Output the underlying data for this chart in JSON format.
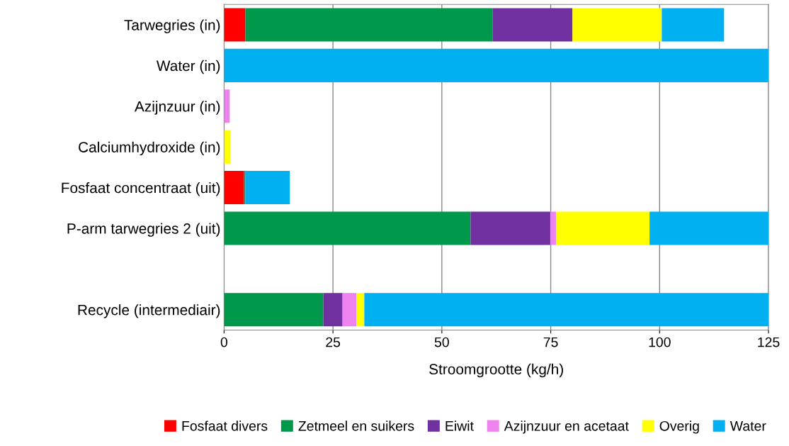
{
  "chart_data": {
    "type": "bar",
    "orientation": "horizontal",
    "stacked": true,
    "categories": [
      "Tarwegries (in)",
      "Water (in)",
      "Azijnzuur (in)",
      "Calciumhydroxide (in)",
      "Fosfaat concentraat (uit)",
      "P-arm tarwegries 2 (uit)",
      null,
      "Recycle (intermediair)"
    ],
    "series": [
      {
        "name": "Fosfaat divers",
        "color": "#ff0000",
        "values": [
          4.9,
          0,
          0,
          0,
          4.6,
          0,
          null,
          0
        ]
      },
      {
        "name": "Zetmeel en suikers",
        "color": "#00994c",
        "values": [
          56.8,
          0,
          0,
          0,
          0.3,
          56.6,
          null,
          22.8
        ]
      },
      {
        "name": "Eiwit",
        "color": "#7030a0",
        "values": [
          18.3,
          0,
          0,
          0,
          0,
          18.3,
          null,
          4.4
        ]
      },
      {
        "name": "Azijnzuur en acetaat",
        "color": "#ee82ee",
        "values": [
          0,
          0,
          1.3,
          0,
          0,
          1.3,
          null,
          3.2
        ]
      },
      {
        "name": "Overig",
        "color": "#ffff00",
        "values": [
          20.5,
          0,
          0,
          1.4,
          0,
          21.5,
          null,
          1.8
        ]
      },
      {
        "name": "Water",
        "color": "#00b0f0",
        "values": [
          14.3,
          125,
          0,
          0,
          10.2,
          27.3,
          null,
          92.8
        ]
      }
    ],
    "xlabel": "Stroomgrootte (kg/h)",
    "xlim": [
      0,
      125
    ],
    "xticks": [
      0,
      25,
      50,
      75,
      100,
      125
    ],
    "grid": "x",
    "legend": "bottom"
  }
}
